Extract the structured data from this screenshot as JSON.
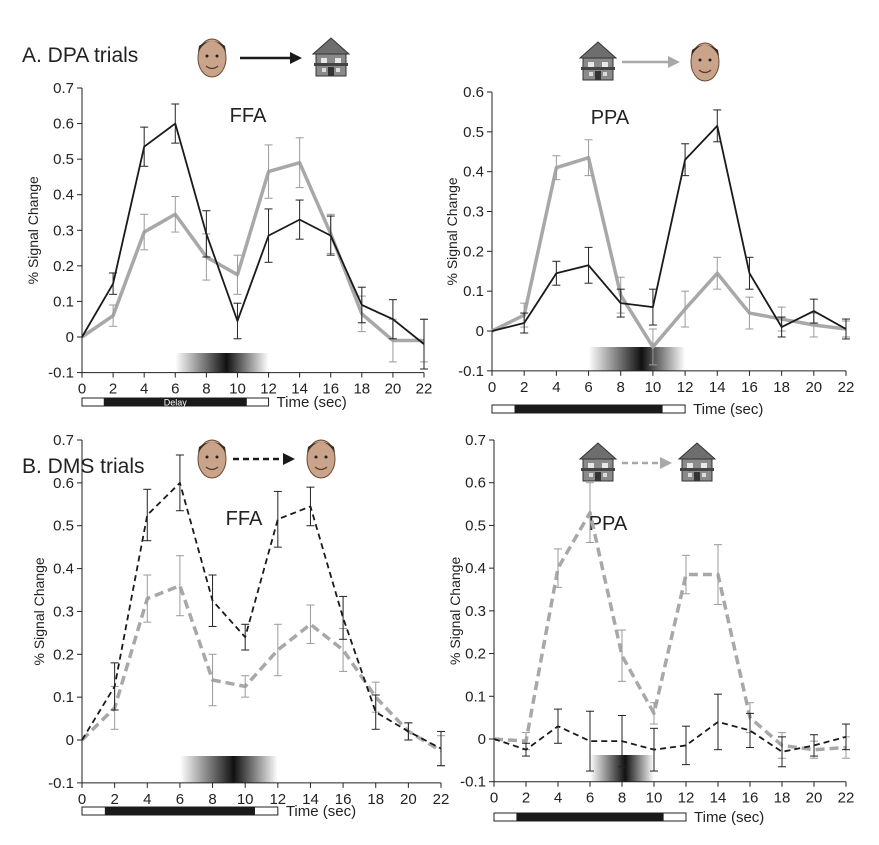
{
  "sections": [
    {
      "title": "A. DPA trials"
    },
    {
      "title": "B. DMS trials"
    }
  ],
  "time_axis_label": "Time (sec)",
  "delay_label": "Delay",
  "colors": {
    "dark": "#1a1a1a",
    "light": "#a8a8a8"
  },
  "icons": [
    "face-icon",
    "house-icon"
  ],
  "chart_data": [
    {
      "type": "line",
      "panel": "A-left",
      "title": "FFA",
      "sequence": [
        "face",
        "house"
      ],
      "dashed": false,
      "arrow_color": "dark",
      "ylabel": "% Signal Change",
      "xlabel": "Time (sec)",
      "ylim": [
        -0.1,
        0.7
      ],
      "yticks": [
        -0.1,
        0,
        0.1,
        0.2,
        0.3,
        0.4,
        0.5,
        0.6,
        0.7
      ],
      "x": [
        0,
        2,
        4,
        6,
        8,
        10,
        12,
        14,
        16,
        18,
        20,
        22
      ],
      "shade_range": [
        6,
        12
      ],
      "series": [
        {
          "color": "dark",
          "values": [
            0,
            0.15,
            0.535,
            0.6,
            0.29,
            0.045,
            0.285,
            0.33,
            0.285,
            0.09,
            0.05,
            -0.02
          ],
          "errors": [
            0,
            0.03,
            0.055,
            0.055,
            0.065,
            0.05,
            0.075,
            0.055,
            0.055,
            0.05,
            0.055,
            0.07
          ]
        },
        {
          "color": "light",
          "values": [
            0,
            0.06,
            0.295,
            0.345,
            0.225,
            0.175,
            0.465,
            0.49,
            0.29,
            0.065,
            -0.01,
            -0.01
          ],
          "errors": [
            0,
            0.03,
            0.05,
            0.05,
            0.065,
            0.055,
            0.075,
            0.07,
            0.055,
            0.05,
            0.06,
            0.06
          ]
        }
      ]
    },
    {
      "type": "line",
      "panel": "A-right",
      "title": "PPA",
      "sequence": [
        "house",
        "face"
      ],
      "dashed": false,
      "arrow_color": "light",
      "ylabel": "% Signal Change",
      "xlabel": "Time (sec)",
      "ylim": [
        -0.1,
        0.6
      ],
      "yticks": [
        -0.1,
        0,
        0.1,
        0.2,
        0.3,
        0.4,
        0.5,
        0.6
      ],
      "x": [
        0,
        2,
        4,
        6,
        8,
        10,
        12,
        14,
        16,
        18,
        20,
        22
      ],
      "shade_range": [
        6,
        12
      ],
      "series": [
        {
          "color": "dark",
          "values": [
            0,
            0.02,
            0.145,
            0.165,
            0.07,
            0.06,
            0.43,
            0.515,
            0.145,
            0.01,
            0.05,
            0.005
          ],
          "errors": [
            0,
            0.025,
            0.03,
            0.045,
            0.035,
            0.045,
            0.04,
            0.04,
            0.04,
            0.025,
            0.03,
            0.025
          ]
        },
        {
          "color": "light",
          "values": [
            0,
            0.04,
            0.41,
            0.435,
            0.09,
            -0.04,
            0.055,
            0.145,
            0.045,
            0.03,
            0.015,
            0.005
          ],
          "errors": [
            0,
            0.03,
            0.03,
            0.045,
            0.045,
            0.045,
            0.045,
            0.04,
            0.04,
            0.03,
            0.03,
            0.02
          ]
        }
      ]
    },
    {
      "type": "line",
      "panel": "B-left",
      "title": "FFA",
      "sequence": [
        "face",
        "face"
      ],
      "dashed": true,
      "arrow_color": "dark",
      "ylabel": "% Signal Change",
      "xlabel": "Time (sec)",
      "ylim": [
        -0.1,
        0.7
      ],
      "yticks": [
        -0.1,
        0,
        0.1,
        0.2,
        0.3,
        0.4,
        0.5,
        0.6,
        0.7
      ],
      "x": [
        0,
        2,
        4,
        6,
        8,
        10,
        12,
        14,
        16,
        18,
        20,
        22
      ],
      "shade_range": [
        6,
        12
      ],
      "series": [
        {
          "color": "dark",
          "values": [
            0,
            0.125,
            0.525,
            0.6,
            0.325,
            0.24,
            0.515,
            0.545,
            0.285,
            0.065,
            0.02,
            -0.02
          ],
          "errors": [
            0,
            0.055,
            0.06,
            0.065,
            0.06,
            0.03,
            0.065,
            0.045,
            0.05,
            0.04,
            0.02,
            0.04
          ]
        },
        {
          "color": "light",
          "values": [
            0,
            0.075,
            0.33,
            0.36,
            0.14,
            0.125,
            0.21,
            0.27,
            0.21,
            0.1,
            0.02,
            -0.025
          ],
          "errors": [
            0,
            0.05,
            0.055,
            0.07,
            0.06,
            0.025,
            0.06,
            0.045,
            0.05,
            0.035,
            0.02,
            0.035
          ]
        }
      ]
    },
    {
      "type": "line",
      "panel": "B-right",
      "title": "PPA",
      "sequence": [
        "house",
        "house"
      ],
      "dashed": true,
      "arrow_color": "light",
      "ylabel": "% Signal Change",
      "xlabel": "Time (sec)",
      "ylim": [
        -0.1,
        0.7
      ],
      "yticks": [
        -0.1,
        0,
        0.1,
        0.2,
        0.3,
        0.4,
        0.5,
        0.6,
        0.7
      ],
      "x": [
        0,
        2,
        4,
        6,
        8,
        10,
        12,
        14,
        16,
        18,
        20,
        22
      ],
      "shade_range": [
        6,
        10
      ],
      "series": [
        {
          "color": "dark",
          "values": [
            0,
            -0.025,
            0.03,
            -0.005,
            -0.005,
            -0.025,
            -0.015,
            0.04,
            0.02,
            -0.03,
            -0.015,
            0.005
          ],
          "errors": [
            0,
            0.015,
            0.04,
            0.07,
            0.06,
            0.05,
            0.045,
            0.065,
            0.04,
            0.035,
            0.025,
            0.03
          ]
        },
        {
          "color": "light",
          "values": [
            0,
            -0.005,
            0.4,
            0.53,
            0.195,
            0.06,
            0.385,
            0.385,
            0.05,
            -0.015,
            -0.025,
            -0.02
          ],
          "errors": [
            0,
            0.02,
            0.045,
            0.07,
            0.06,
            0.025,
            0.045,
            0.07,
            0.035,
            0.03,
            0.02,
            0.025
          ]
        }
      ]
    }
  ]
}
